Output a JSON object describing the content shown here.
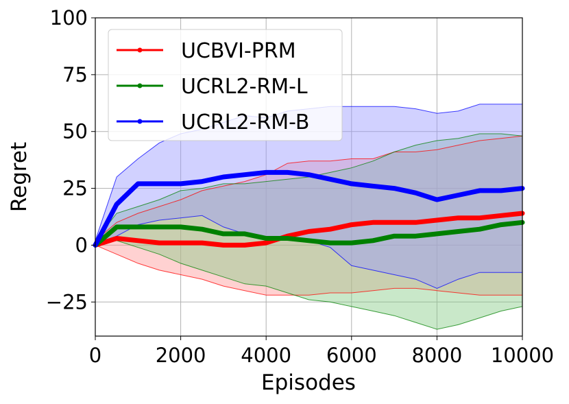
{
  "chart_data": {
    "type": "line",
    "title": "",
    "xlabel": "Episodes",
    "ylabel": "Regret",
    "xlim": [
      0,
      10000
    ],
    "ylim": [
      -40,
      100
    ],
    "xticks": [
      0,
      2000,
      4000,
      6000,
      8000,
      10000
    ],
    "xtick_labels": [
      "0",
      "2000",
      "4000",
      "6000",
      "8000",
      "10000"
    ],
    "yticks": [
      -25,
      0,
      25,
      50,
      75,
      100
    ],
    "ytick_labels": [
      "−25",
      "0",
      "25",
      "50",
      "75",
      "100"
    ],
    "grid": true,
    "legend_position": "top-left",
    "x": [
      0,
      500,
      1000,
      1500,
      2000,
      2500,
      3000,
      3500,
      4000,
      4500,
      5000,
      5500,
      6000,
      6500,
      7000,
      7500,
      8000,
      8500,
      9000,
      9500,
      10000
    ],
    "series": [
      {
        "name": "UCBVI-PRM",
        "color": "#ff0000",
        "fill": "#ff9999",
        "values": [
          0,
          3,
          2,
          1,
          1,
          1,
          0,
          0,
          1,
          4,
          6,
          7,
          9,
          10,
          10,
          10,
          11,
          12,
          12,
          13,
          14
        ],
        "upper": [
          2,
          10,
          14,
          17,
          20,
          24,
          26,
          28,
          31,
          36,
          37,
          37,
          38,
          38,
          41,
          41,
          42,
          44,
          46,
          47,
          48
        ],
        "lower": [
          0,
          -4,
          -8,
          -11,
          -13,
          -15,
          -18,
          -20,
          -22,
          -22,
          -22,
          -21,
          -21,
          -20,
          -19,
          -19,
          -20,
          -21,
          -22,
          -22,
          -22
        ]
      },
      {
        "name": "UCRL2-RM-L",
        "color": "#008000",
        "fill": "#88cc88",
        "values": [
          0,
          8,
          8,
          8,
          8,
          7,
          5,
          5,
          3,
          3,
          2,
          1,
          1,
          2,
          4,
          4,
          5,
          6,
          7,
          9,
          10
        ],
        "upper": [
          2,
          14,
          17,
          20,
          24,
          25,
          27,
          27,
          28,
          29,
          30,
          32,
          34,
          37,
          41,
          44,
          46,
          47,
          49,
          49,
          48
        ],
        "lower": [
          0,
          2,
          -1,
          -4,
          -8,
          -11,
          -14,
          -17,
          -18,
          -21,
          -24,
          -25,
          -27,
          -29,
          -31,
          -34,
          -37,
          -35,
          -32,
          -29,
          -27
        ]
      },
      {
        "name": "UCRL2-RM-B",
        "color": "#0000ff",
        "fill": "#9999ff",
        "values": [
          0,
          18,
          27,
          27,
          27,
          28,
          30,
          31,
          32,
          32,
          31,
          29,
          27,
          26,
          25,
          23,
          20,
          22,
          24,
          24,
          25
        ],
        "upper": [
          2,
          30,
          38,
          45,
          49,
          51,
          54,
          57,
          56,
          59,
          60,
          61,
          61,
          61,
          61,
          60,
          58,
          59,
          62,
          62,
          62
        ],
        "lower": [
          0,
          4,
          9,
          11,
          12,
          13,
          8,
          5,
          2,
          3,
          2,
          -1,
          -9,
          -11,
          -13,
          -15,
          -19,
          -15,
          -12,
          -12,
          -12
        ]
      }
    ]
  }
}
